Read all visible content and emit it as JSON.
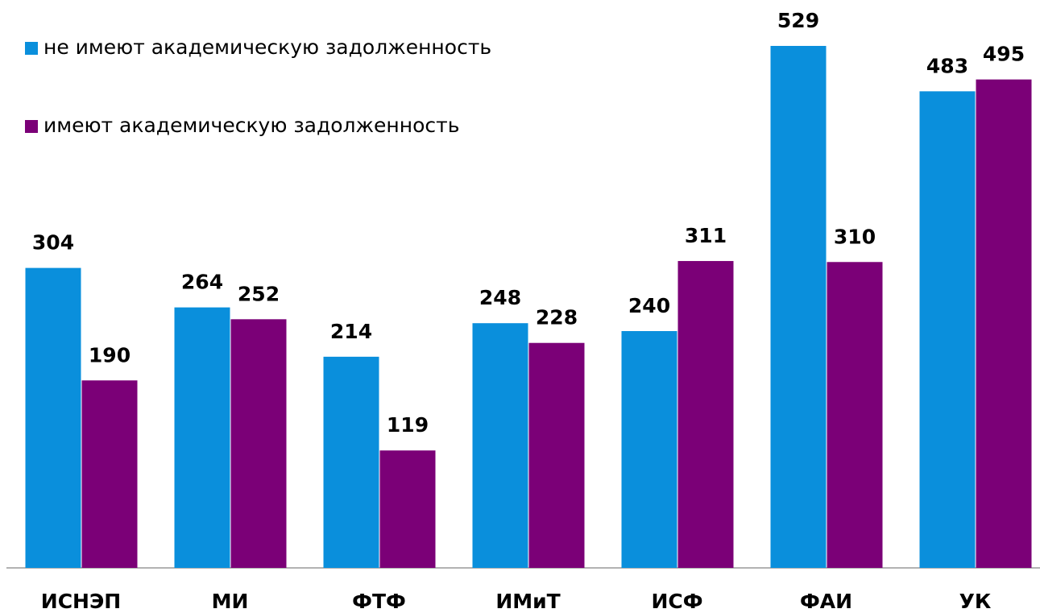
{
  "chart_data": {
    "type": "bar",
    "categories": [
      "ИСНЭП",
      "МИ",
      "ФТФ",
      "ИМиТ",
      "ИСФ",
      "ФАИ",
      "УК"
    ],
    "series": [
      {
        "name": "не имеют академическую задолженность",
        "color": "#0a8fdc",
        "values": [
          304,
          264,
          214,
          248,
          240,
          529,
          483
        ]
      },
      {
        "name": "имеют академическую задолженность",
        "color": "#7b0077",
        "values": [
          190,
          252,
          119,
          228,
          311,
          310,
          495
        ]
      }
    ],
    "legend": "top-left"
  }
}
